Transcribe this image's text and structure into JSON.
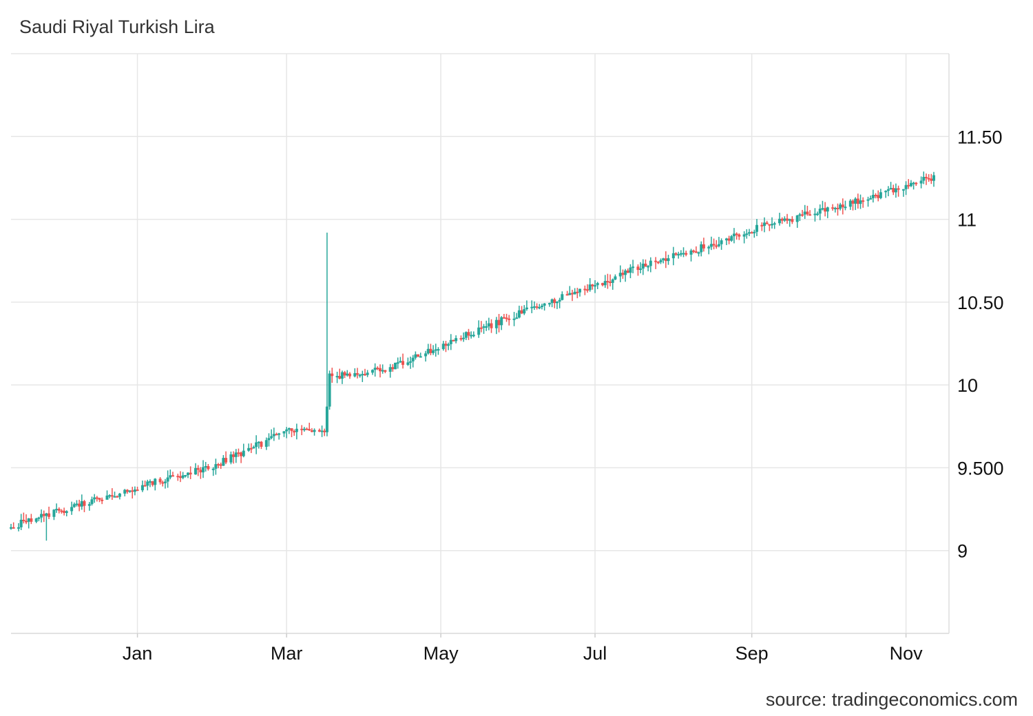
{
  "chart_data": {
    "type": "candlestick",
    "title": "Saudi Riyal Turkish Lira",
    "source": "source: tradingeconomics.com",
    "xlabel": "",
    "ylabel": "",
    "ylim": [
      8.5,
      12
    ],
    "yticks": [
      {
        "value": 9,
        "label": "9"
      },
      {
        "value": 9.5,
        "label": "9.500"
      },
      {
        "value": 10,
        "label": "10"
      },
      {
        "value": 10.5,
        "label": "10.50"
      },
      {
        "value": 11,
        "label": "11"
      },
      {
        "value": 11.5,
        "label": "11.50"
      }
    ],
    "xlim": [
      "2021-11-12",
      "2022-11-18"
    ],
    "xticks": [
      {
        "date": "2022-01-01",
        "label": "Jan"
      },
      {
        "date": "2022-03-01",
        "label": "Mar"
      },
      {
        "date": "2022-05-01",
        "label": "May"
      },
      {
        "date": "2022-07-01",
        "label": "Jul"
      },
      {
        "date": "2022-09-01",
        "label": "Sep"
      },
      {
        "date": "2022-11-01",
        "label": "Nov"
      }
    ],
    "grid": true,
    "legend": "none",
    "colors": {
      "up": "#26a69a",
      "down": "#ef5350",
      "grid": "#e6e6e6",
      "axis": "#dddddd"
    },
    "anchors": [
      {
        "date": "2021-11-12",
        "close": 9.14
      },
      {
        "date": "2021-11-20",
        "close": 9.19
      },
      {
        "date": "2021-12-10",
        "close": 9.28
      },
      {
        "date": "2022-01-01",
        "close": 9.38
      },
      {
        "date": "2022-02-01",
        "close": 9.52
      },
      {
        "date": "2022-03-01",
        "close": 9.72
      },
      {
        "date": "2022-03-16",
        "close": 9.73
      },
      {
        "date": "2022-03-18",
        "close": 10.05
      },
      {
        "date": "2022-04-10",
        "close": 10.1
      },
      {
        "date": "2022-04-22",
        "close": 10.17
      },
      {
        "date": "2022-05-01",
        "close": 10.24
      },
      {
        "date": "2022-06-01",
        "close": 10.43
      },
      {
        "date": "2022-07-01",
        "close": 10.6
      },
      {
        "date": "2022-07-25",
        "close": 10.75
      },
      {
        "date": "2022-08-15",
        "close": 10.84
      },
      {
        "date": "2022-09-01",
        "close": 10.94
      },
      {
        "date": "2022-10-01",
        "close": 11.06
      },
      {
        "date": "2022-10-20",
        "close": 11.14
      },
      {
        "date": "2022-11-01",
        "close": 11.2
      },
      {
        "date": "2022-11-12",
        "close": 11.26
      }
    ],
    "spikes": [
      {
        "date": "2021-11-14",
        "high": 9.4
      },
      {
        "date": "2021-11-26",
        "low": 9.06
      },
      {
        "date": "2022-03-17",
        "high": 10.92
      }
    ]
  }
}
